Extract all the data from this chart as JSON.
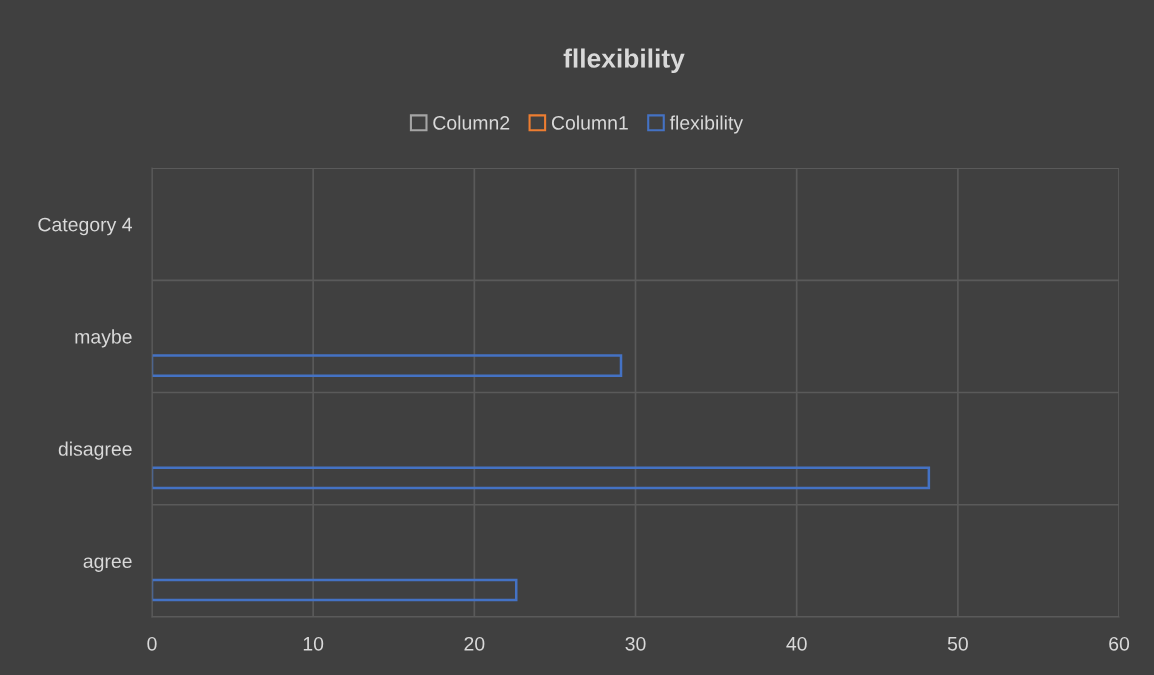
{
  "chart_data": {
    "type": "bar",
    "orientation": "horizontal",
    "title": "fllexibility",
    "categories": [
      "Category 4",
      "maybe",
      "disagree",
      "agree"
    ],
    "series": [
      {
        "name": "Column2",
        "color": "#a5a5a5",
        "values": [
          null,
          null,
          null,
          null
        ]
      },
      {
        "name": "Column1",
        "color": "#ed7d31",
        "values": [
          null,
          null,
          null,
          null
        ]
      },
      {
        "name": "flexibility",
        "color": "#4472c4",
        "values": [
          null,
          29.1,
          48.2,
          22.6
        ]
      }
    ],
    "xlim": [
      0,
      60
    ],
    "xticks": [
      0,
      10,
      20,
      30,
      40,
      50,
      60
    ],
    "grid": true,
    "legend": "top"
  }
}
